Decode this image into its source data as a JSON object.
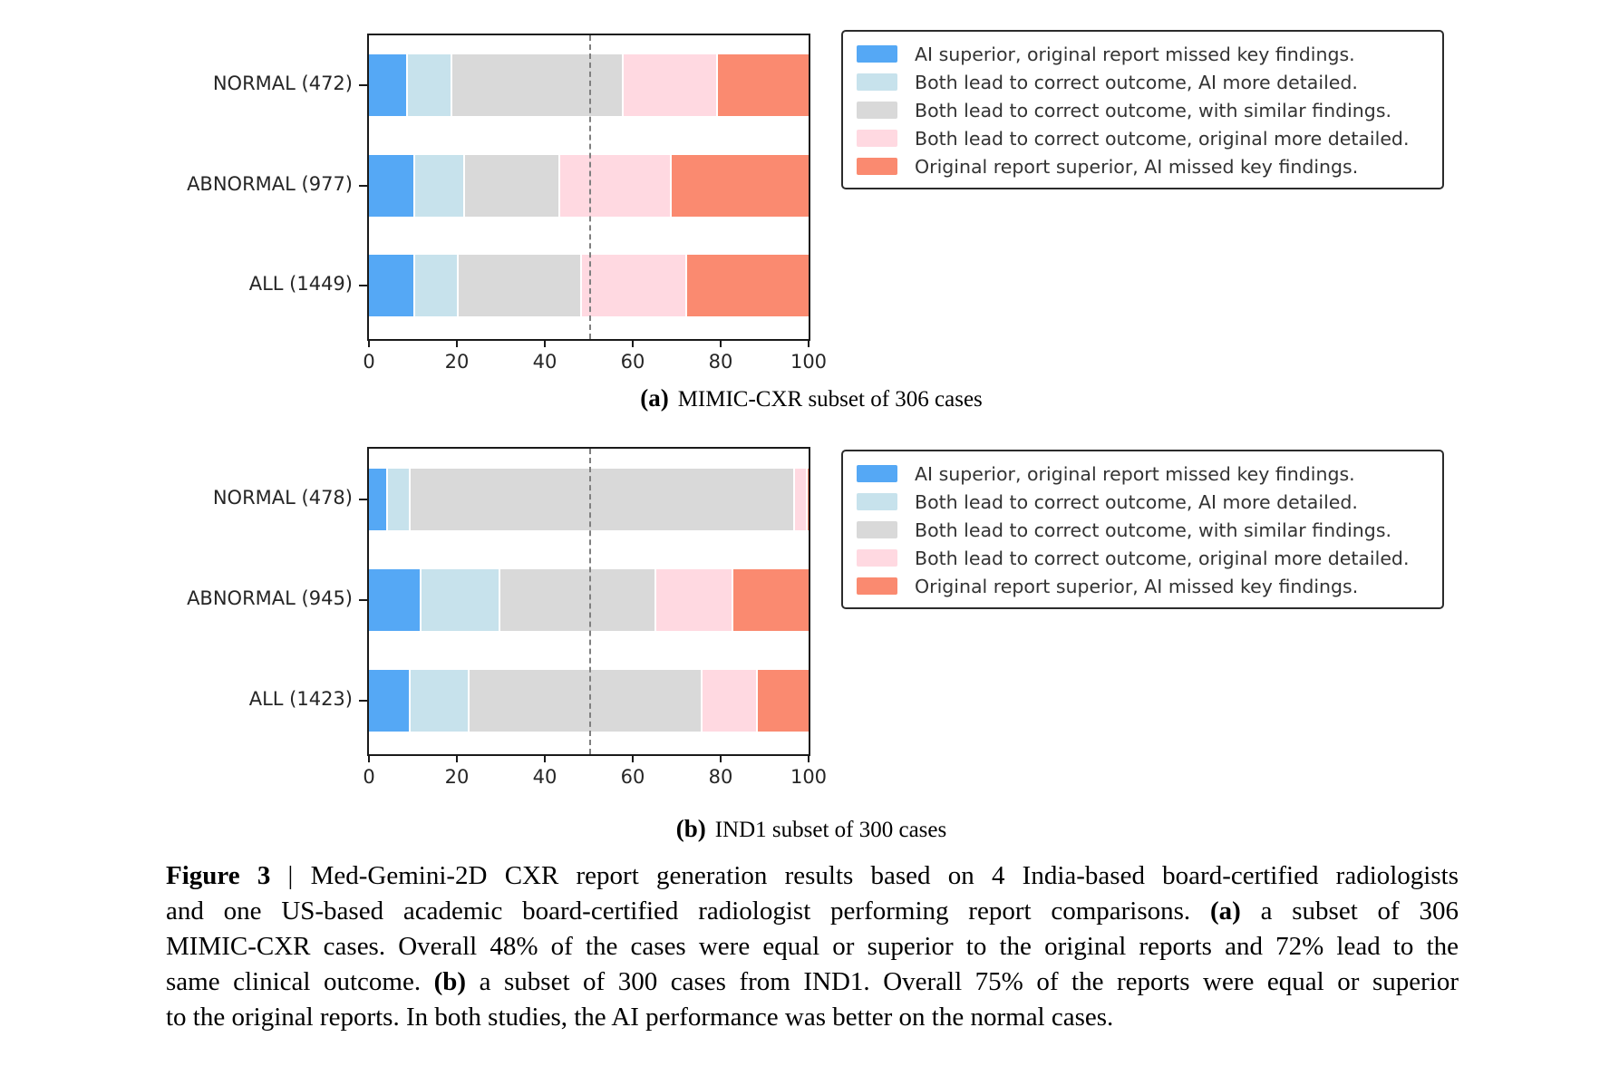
{
  "chart_data": [
    {
      "type": "bar",
      "variant": "horizontal_stacked_percent",
      "caption": {
        "label": "(a)",
        "text": "MIMIC-CXR subset of 306 cases"
      },
      "categories": [
        "NORMAL (472)",
        "ABNORMAL (977)",
        "ALL (1449)"
      ],
      "series": [
        {
          "name": "AI superior, original report missed key findings.",
          "color": "#55a8f5",
          "values": [
            8.5,
            10,
            10
          ]
        },
        {
          "name": "Both lead to correct outcome, AI more detailed.",
          "color": "#c7e2ec",
          "values": [
            10,
            11.5,
            10
          ]
        },
        {
          "name": "Both lead to correct outcome, with similar findings.",
          "color": "#d9d9d9",
          "values": [
            39,
            21.5,
            28
          ]
        },
        {
          "name": "Both lead to correct outcome, original more detailed.",
          "color": "#ffd9e1",
          "values": [
            21.5,
            25.5,
            24
          ]
        },
        {
          "name": "Original report superior, AI missed key findings.",
          "color": "#fa8a70",
          "values": [
            21,
            31.5,
            28
          ]
        }
      ],
      "xlim": [
        0,
        100
      ],
      "xticks": [
        0,
        20,
        40,
        60,
        80,
        100
      ],
      "ref_line_x": 50,
      "grid": false,
      "legend_position": "outside-right"
    },
    {
      "type": "bar",
      "variant": "horizontal_stacked_percent",
      "caption": {
        "label": "(b)",
        "text": "IND1 subset of 300 cases"
      },
      "categories": [
        "NORMAL (478)",
        "ABNORMAL (945)",
        "ALL (1423)"
      ],
      "series": [
        {
          "name": "AI superior, original report missed key findings.",
          "color": "#55a8f5",
          "values": [
            4,
            11.5,
            9
          ]
        },
        {
          "name": "Both lead to correct outcome, AI more detailed.",
          "color": "#c7e2ec",
          "values": [
            5,
            18,
            13.5
          ]
        },
        {
          "name": "Both lead to correct outcome, with similar findings.",
          "color": "#d9d9d9",
          "values": [
            87.5,
            35.5,
            53
          ]
        },
        {
          "name": "Both lead to correct outcome, original more detailed.",
          "color": "#ffd9e1",
          "values": [
            2.8,
            17.5,
            12.5
          ]
        },
        {
          "name": "Original report superior, AI missed key findings.",
          "color": "#fa8a70",
          "values": [
            0.7,
            17.5,
            12
          ]
        }
      ],
      "xlim": [
        0,
        100
      ],
      "xticks": [
        0,
        20,
        40,
        60,
        80,
        100
      ],
      "ref_line_x": 50,
      "grid": false,
      "legend_position": "outside-right"
    }
  ],
  "figure_caption": {
    "lines": [
      [
        {
          "t": "Figure 3",
          "b": true
        },
        {
          "t": " | Med-Gemini-2D CXR report generation results based on 4 India-based board-certified radiologists"
        }
      ],
      [
        {
          "t": "and one US-based academic board-certified radiologist performing report comparisons. "
        },
        {
          "t": "(a)",
          "b": true
        },
        {
          "t": " a subset of 306"
        }
      ],
      [
        {
          "t": "MIMIC-CXR cases. Overall 48% of the cases were equal or superior to the original reports and 72% lead to the"
        }
      ],
      [
        {
          "t": "same clinical outcome. "
        },
        {
          "t": "(b)",
          "b": true
        },
        {
          "t": " a subset of 300 cases from IND1. Overall 75% of the reports were equal or superior"
        }
      ],
      [
        {
          "t": "to the original reports. In both studies, the AI performance was better on the normal cases."
        }
      ]
    ]
  }
}
